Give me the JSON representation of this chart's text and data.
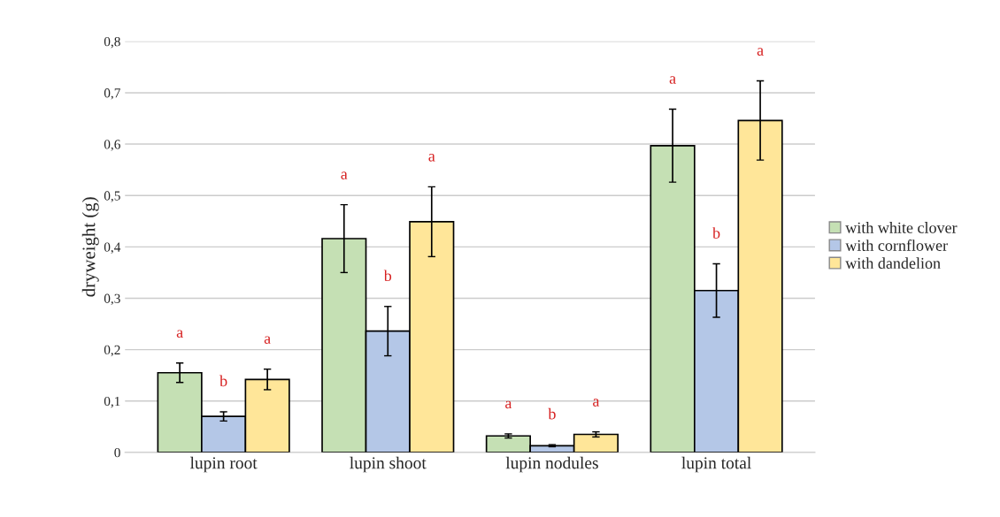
{
  "chart_data": {
    "type": "bar",
    "ylabel": "dryweight (g)",
    "categories": [
      "lupin root",
      "lupin shoot",
      "lupin nodules",
      "lupin total"
    ],
    "series": [
      {
        "name": "with white clover",
        "color": "#c5e0b4",
        "values": [
          0.155,
          0.416,
          0.032,
          0.597
        ],
        "errors": [
          0.019,
          0.066,
          0.004,
          0.071
        ]
      },
      {
        "name": "with cornflower",
        "color": "#b4c7e7",
        "values": [
          0.07,
          0.236,
          0.013,
          0.315
        ],
        "errors": [
          0.009,
          0.048,
          0.002,
          0.052
        ]
      },
      {
        "name": "with dandelion",
        "color": "#ffe699",
        "values": [
          0.142,
          0.449,
          0.035,
          0.646
        ],
        "errors": [
          0.02,
          0.068,
          0.005,
          0.077
        ]
      }
    ],
    "ylim": [
      0,
      0.8
    ],
    "yticks": [
      0,
      {
        "value": 0.1,
        "label": "0,1"
      },
      {
        "value": 0.2,
        "label": "0,2"
      },
      {
        "value": 0.3,
        "label": "0,3"
      },
      {
        "value": 0.4,
        "label": "0,4"
      },
      {
        "value": 0.5,
        "label": "0,5"
      },
      {
        "value": 0.6,
        "label": "0,6"
      },
      {
        "value": 0.7,
        "label": "0,7"
      },
      {
        "value": 0.8,
        "label": "0,8"
      }
    ],
    "grid": "y",
    "legend": "right",
    "annotations": [
      "a",
      "b",
      "a",
      "a",
      "b",
      "a",
      "a",
      "b",
      "a",
      "a",
      "b",
      "a"
    ]
  }
}
